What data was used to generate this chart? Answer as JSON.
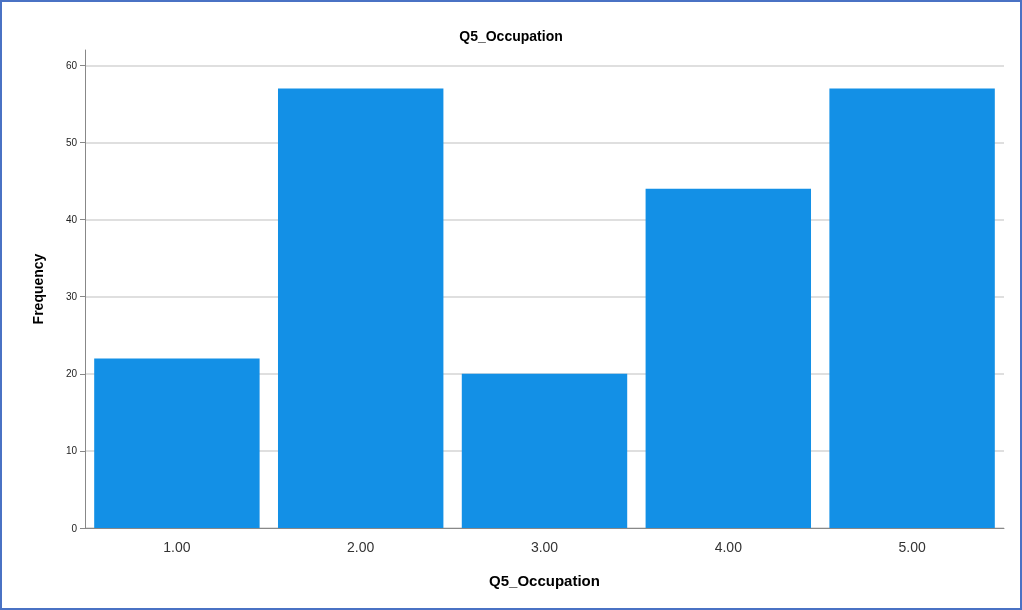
{
  "chart_data": {
    "type": "bar",
    "title": "Q5_Occupation",
    "xlabel": "Q5_Occupation",
    "ylabel": "Frequency",
    "categories": [
      "1.00",
      "2.00",
      "3.00",
      "4.00",
      "5.00"
    ],
    "values": [
      22,
      57,
      20,
      44,
      57
    ],
    "color": "#1390e6",
    "ylim": [
      0,
      62
    ],
    "yticks": [
      0,
      10,
      20,
      30,
      40,
      50,
      60
    ],
    "grid": "y"
  }
}
